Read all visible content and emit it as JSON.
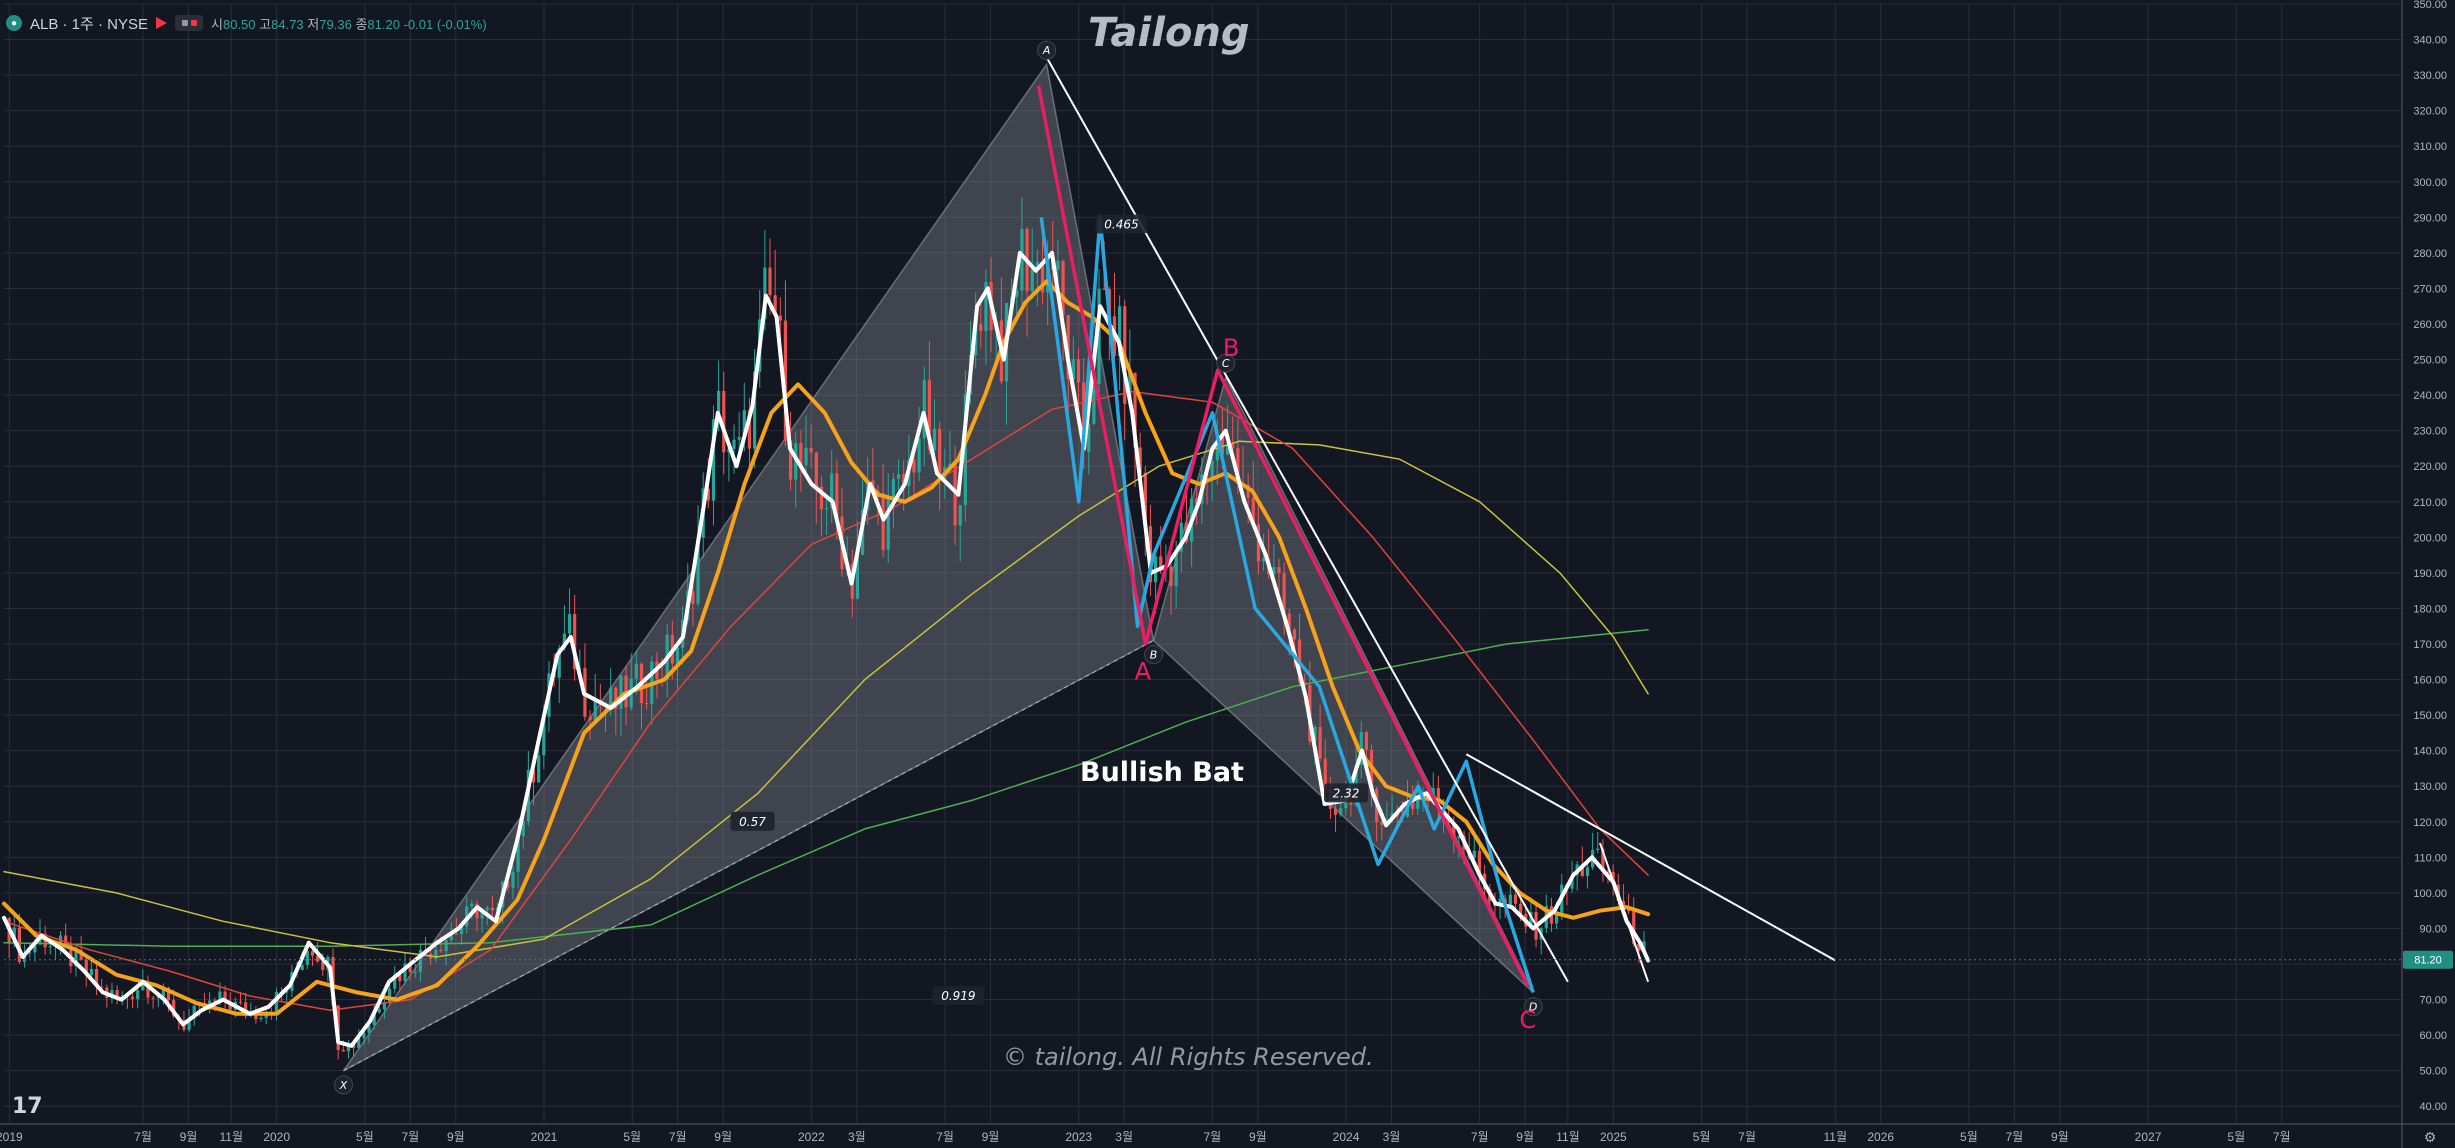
{
  "header": {
    "symbol": "ALB · 1주 · NYSE",
    "open_label": "시",
    "open_value": "80.50",
    "high_label": "고",
    "high_value": "84.73",
    "low_label": "저",
    "low_value": "79.36",
    "close_label": "종",
    "close_value": "81.20",
    "change": "-0.01 (-0.01%)"
  },
  "watermark": {
    "title": "Tailong",
    "copyright": "© tailong. All Rights Reserved."
  },
  "logo_text": "17",
  "colors": {
    "background": "#131722",
    "grid": "#2a2e39",
    "up": "#26a69a",
    "down": "#ef5350",
    "price_line": "#ffffff",
    "ma_fast": "#f7a21b",
    "ma_50": "#e0453b",
    "ma_100": "#c9c23a",
    "ma_200": "#4caf50",
    "harmonic": "#9598a1",
    "abc": "#e91e63",
    "swing": "#29a8e0",
    "trendline": "#ffffff",
    "last_price": "#1f8f84"
  },
  "chart_data": {
    "type": "line",
    "title": "",
    "xlabel": "",
    "ylabel": "",
    "ylim": [
      35,
      350
    ],
    "xlim": [
      2018.98,
      2027.95
    ],
    "y_ticks": [
      "40.00",
      "50.00",
      "60.00",
      "70.00",
      "80.00",
      "90.00",
      "100.00",
      "110.00",
      "120.00",
      "130.00",
      "140.00",
      "150.00",
      "160.00",
      "170.00",
      "180.00",
      "190.00",
      "200.00",
      "210.00",
      "220.00",
      "230.00",
      "240.00",
      "250.00",
      "260.00",
      "270.00",
      "280.00",
      "290.00",
      "300.00",
      "310.00",
      "320.00",
      "330.00",
      "340.00",
      "350.00"
    ],
    "x_ticks": [
      {
        "t": 2019.0,
        "label": "2019"
      },
      {
        "t": 2019.5,
        "label": "7월"
      },
      {
        "t": 2019.67,
        "label": "9월"
      },
      {
        "t": 2019.83,
        "label": "11월"
      },
      {
        "t": 2020.0,
        "label": "2020"
      },
      {
        "t": 2020.33,
        "label": "5월"
      },
      {
        "t": 2020.5,
        "label": "7월"
      },
      {
        "t": 2020.67,
        "label": "9월"
      },
      {
        "t": 2021.0,
        "label": "2021"
      },
      {
        "t": 2021.33,
        "label": "5월"
      },
      {
        "t": 2021.5,
        "label": "7월"
      },
      {
        "t": 2021.67,
        "label": "9월"
      },
      {
        "t": 2022.0,
        "label": "2022"
      },
      {
        "t": 2022.17,
        "label": "3월"
      },
      {
        "t": 2022.5,
        "label": "7월"
      },
      {
        "t": 2022.67,
        "label": "9월"
      },
      {
        "t": 2023.0,
        "label": "2023"
      },
      {
        "t": 2023.17,
        "label": "3월"
      },
      {
        "t": 2023.5,
        "label": "7월"
      },
      {
        "t": 2023.67,
        "label": "9월"
      },
      {
        "t": 2024.0,
        "label": "2024"
      },
      {
        "t": 2024.17,
        "label": "3월"
      },
      {
        "t": 2024.5,
        "label": "7월"
      },
      {
        "t": 2024.67,
        "label": "9월"
      },
      {
        "t": 2024.83,
        "label": "11월"
      },
      {
        "t": 2025.0,
        "label": "2025"
      },
      {
        "t": 2025.33,
        "label": "5월"
      },
      {
        "t": 2025.5,
        "label": "7월"
      },
      {
        "t": 2025.83,
        "label": "11월"
      },
      {
        "t": 2026.0,
        "label": "2026"
      },
      {
        "t": 2026.33,
        "label": "5월"
      },
      {
        "t": 2026.5,
        "label": "7월"
      },
      {
        "t": 2026.67,
        "label": "9월"
      },
      {
        "t": 2027.0,
        "label": "2027"
      },
      {
        "t": 2027.33,
        "label": "5월"
      },
      {
        "t": 2027.5,
        "label": "7월"
      }
    ],
    "last_price": {
      "value": 81.2,
      "label": "81.20"
    },
    "series": [
      {
        "key": "price",
        "points": [
          [
            2018.98,
            93
          ],
          [
            2019.05,
            82
          ],
          [
            2019.12,
            88
          ],
          [
            2019.2,
            84
          ],
          [
            2019.28,
            78
          ],
          [
            2019.35,
            72
          ],
          [
            2019.42,
            70
          ],
          [
            2019.5,
            75
          ],
          [
            2019.58,
            70
          ],
          [
            2019.65,
            63
          ],
          [
            2019.72,
            67
          ],
          [
            2019.8,
            70
          ],
          [
            2019.9,
            66
          ],
          [
            2019.97,
            68
          ],
          [
            2020.05,
            74
          ],
          [
            2020.12,
            86
          ],
          [
            2020.2,
            79
          ],
          [
            2020.23,
            58
          ],
          [
            2020.28,
            57
          ],
          [
            2020.35,
            64
          ],
          [
            2020.42,
            75
          ],
          [
            2020.5,
            80
          ],
          [
            2020.6,
            86
          ],
          [
            2020.68,
            90
          ],
          [
            2020.75,
            96
          ],
          [
            2020.82,
            92
          ],
          [
            2020.9,
            115
          ],
          [
            2020.98,
            143
          ],
          [
            2021.05,
            167
          ],
          [
            2021.1,
            172
          ],
          [
            2021.15,
            156
          ],
          [
            2021.25,
            152
          ],
          [
            2021.35,
            158
          ],
          [
            2021.45,
            165
          ],
          [
            2021.52,
            172
          ],
          [
            2021.6,
            210
          ],
          [
            2021.65,
            235
          ],
          [
            2021.72,
            220
          ],
          [
            2021.78,
            237
          ],
          [
            2021.83,
            268
          ],
          [
            2021.87,
            262
          ],
          [
            2021.92,
            225
          ],
          [
            2022.0,
            215
          ],
          [
            2022.08,
            210
          ],
          [
            2022.15,
            187
          ],
          [
            2022.22,
            215
          ],
          [
            2022.27,
            205
          ],
          [
            2022.35,
            215
          ],
          [
            2022.42,
            235
          ],
          [
            2022.47,
            218
          ],
          [
            2022.55,
            212
          ],
          [
            2022.62,
            265
          ],
          [
            2022.66,
            270
          ],
          [
            2022.72,
            250
          ],
          [
            2022.78,
            280
          ],
          [
            2022.84,
            275
          ],
          [
            2022.9,
            280
          ],
          [
            2022.96,
            250
          ],
          [
            2023.02,
            225
          ],
          [
            2023.08,
            265
          ],
          [
            2023.15,
            255
          ],
          [
            2023.2,
            235
          ],
          [
            2023.27,
            190
          ],
          [
            2023.33,
            192
          ],
          [
            2023.4,
            200
          ],
          [
            2023.45,
            210
          ],
          [
            2023.5,
            225
          ],
          [
            2023.55,
            230
          ],
          [
            2023.62,
            210
          ],
          [
            2023.7,
            195
          ],
          [
            2023.78,
            175
          ],
          [
            2023.85,
            155
          ],
          [
            2023.92,
            125
          ],
          [
            2024.0,
            126
          ],
          [
            2024.06,
            140
          ],
          [
            2024.1,
            128
          ],
          [
            2024.15,
            119
          ],
          [
            2024.22,
            125
          ],
          [
            2024.3,
            128
          ],
          [
            2024.35,
            124
          ],
          [
            2024.42,
            118
          ],
          [
            2024.5,
            105
          ],
          [
            2024.56,
            97
          ],
          [
            2024.62,
            96
          ],
          [
            2024.7,
            90
          ],
          [
            2024.78,
            95
          ],
          [
            2024.85,
            105
          ],
          [
            2024.92,
            110
          ],
          [
            2025.0,
            103
          ],
          [
            2025.05,
            92
          ],
          [
            2025.1,
            86
          ],
          [
            2025.13,
            81
          ]
        ]
      },
      {
        "key": "ma_fast",
        "points": [
          [
            2018.98,
            97
          ],
          [
            2019.1,
            88
          ],
          [
            2019.25,
            84
          ],
          [
            2019.4,
            77
          ],
          [
            2019.55,
            74
          ],
          [
            2019.7,
            69
          ],
          [
            2019.85,
            66
          ],
          [
            2020.0,
            66
          ],
          [
            2020.15,
            75
          ],
          [
            2020.3,
            72
          ],
          [
            2020.45,
            70
          ],
          [
            2020.6,
            74
          ],
          [
            2020.75,
            85
          ],
          [
            2020.9,
            98
          ],
          [
            2021.0,
            115
          ],
          [
            2021.15,
            145
          ],
          [
            2021.3,
            156
          ],
          [
            2021.45,
            160
          ],
          [
            2021.55,
            168
          ],
          [
            2021.65,
            190
          ],
          [
            2021.75,
            215
          ],
          [
            2021.85,
            235
          ],
          [
            2021.95,
            243
          ],
          [
            2022.05,
            235
          ],
          [
            2022.15,
            221
          ],
          [
            2022.25,
            212
          ],
          [
            2022.35,
            210
          ],
          [
            2022.45,
            214
          ],
          [
            2022.55,
            222
          ],
          [
            2022.65,
            240
          ],
          [
            2022.72,
            255
          ],
          [
            2022.8,
            266
          ],
          [
            2022.88,
            272
          ],
          [
            2022.96,
            266
          ],
          [
            2023.05,
            262
          ],
          [
            2023.15,
            255
          ],
          [
            2023.25,
            235
          ],
          [
            2023.35,
            218
          ],
          [
            2023.45,
            215
          ],
          [
            2023.55,
            218
          ],
          [
            2023.65,
            213
          ],
          [
            2023.75,
            200
          ],
          [
            2023.85,
            180
          ],
          [
            2023.95,
            158
          ],
          [
            2024.05,
            140
          ],
          [
            2024.15,
            130
          ],
          [
            2024.25,
            127
          ],
          [
            2024.35,
            126
          ],
          [
            2024.45,
            120
          ],
          [
            2024.55,
            108
          ],
          [
            2024.65,
            100
          ],
          [
            2024.75,
            95
          ],
          [
            2024.85,
            93
          ],
          [
            2024.95,
            95
          ],
          [
            2025.05,
            96
          ],
          [
            2025.13,
            94
          ]
        ]
      },
      {
        "key": "ma_50",
        "points": [
          [
            2018.98,
            92
          ],
          [
            2019.3,
            84
          ],
          [
            2019.6,
            78
          ],
          [
            2019.9,
            71
          ],
          [
            2020.2,
            67
          ],
          [
            2020.5,
            70
          ],
          [
            2020.8,
            84
          ],
          [
            2021.1,
            115
          ],
          [
            2021.4,
            148
          ],
          [
            2021.7,
            175
          ],
          [
            2022.0,
            198
          ],
          [
            2022.3,
            208
          ],
          [
            2022.6,
            222
          ],
          [
            2022.9,
            236
          ],
          [
            2023.2,
            241
          ],
          [
            2023.5,
            238
          ],
          [
            2023.8,
            225
          ],
          [
            2024.1,
            200
          ],
          [
            2024.4,
            172
          ],
          [
            2024.7,
            143
          ],
          [
            2024.95,
            118
          ],
          [
            2025.13,
            105
          ]
        ]
      },
      {
        "key": "ma_100",
        "points": [
          [
            2018.98,
            106
          ],
          [
            2019.4,
            100
          ],
          [
            2019.8,
            92
          ],
          [
            2020.2,
            86
          ],
          [
            2020.6,
            82
          ],
          [
            2021.0,
            87
          ],
          [
            2021.4,
            104
          ],
          [
            2021.8,
            128
          ],
          [
            2022.2,
            160
          ],
          [
            2022.6,
            184
          ],
          [
            2023.0,
            206
          ],
          [
            2023.3,
            220
          ],
          [
            2023.6,
            227
          ],
          [
            2023.9,
            226
          ],
          [
            2024.2,
            222
          ],
          [
            2024.5,
            210
          ],
          [
            2024.8,
            190
          ],
          [
            2025.0,
            172
          ],
          [
            2025.13,
            156
          ]
        ]
      },
      {
        "key": "ma_200",
        "points": [
          [
            2018.98,
            86
          ],
          [
            2019.6,
            85
          ],
          [
            2020.2,
            85
          ],
          [
            2020.8,
            86
          ],
          [
            2021.4,
            91
          ],
          [
            2021.8,
            105
          ],
          [
            2022.2,
            118
          ],
          [
            2022.6,
            126
          ],
          [
            2023.0,
            136
          ],
          [
            2023.4,
            148
          ],
          [
            2023.8,
            158
          ],
          [
            2024.2,
            164
          ],
          [
            2024.6,
            170
          ],
          [
            2025.0,
            173
          ],
          [
            2025.13,
            174
          ]
        ]
      }
    ],
    "harmonic": {
      "X": [
        2020.25,
        50
      ],
      "A": [
        2022.88,
        333
      ],
      "B": [
        2023.28,
        171
      ],
      "C": [
        2023.55,
        245
      ],
      "D": [
        2024.7,
        72
      ]
    },
    "abc_path": [
      [
        2022.85,
        327
      ],
      [
        2023.25,
        170
      ],
      [
        2023.52,
        247
      ],
      [
        2024.68,
        74
      ]
    ],
    "swing_path": [
      [
        2022.86,
        290
      ],
      [
        2023.0,
        210
      ],
      [
        2023.08,
        290
      ],
      [
        2023.22,
        175
      ],
      [
        2023.28,
        195
      ],
      [
        2023.5,
        235
      ],
      [
        2023.66,
        180
      ],
      [
        2023.9,
        158
      ],
      [
        2024.12,
        108
      ],
      [
        2024.27,
        130
      ],
      [
        2024.33,
        118
      ],
      [
        2024.45,
        137
      ],
      [
        2024.58,
        100
      ],
      [
        2024.7,
        72
      ]
    ],
    "trendlines": [
      [
        [
          2022.88,
          335
        ],
        [
          2024.83,
          75
        ]
      ],
      [
        [
          2024.45,
          139
        ],
        [
          2025.83,
          81
        ]
      ],
      [
        [
          2024.95,
          114
        ],
        [
          2025.13,
          75
        ]
      ]
    ],
    "annotations": [
      {
        "text": "A",
        "at": [
          2022.88,
          337
        ],
        "style": "point"
      },
      {
        "text": "B",
        "at": [
          2023.28,
          167
        ],
        "style": "point"
      },
      {
        "text": "C",
        "at": [
          2023.55,
          249
        ],
        "style": "point"
      },
      {
        "text": "D",
        "at": [
          2024.7,
          68
        ],
        "style": "point"
      },
      {
        "text": "X",
        "at": [
          2020.25,
          46
        ],
        "style": "point"
      },
      {
        "text": "0.465",
        "at": [
          2023.16,
          288
        ],
        "style": "ratio"
      },
      {
        "text": "0.57",
        "at": [
          2021.78,
          120
        ],
        "style": "ratio"
      },
      {
        "text": "0.919",
        "at": [
          2022.55,
          71
        ],
        "style": "ratio"
      },
      {
        "text": "2.32",
        "at": [
          2024.0,
          128
        ],
        "style": "ratio"
      },
      {
        "text": "A",
        "at": [
          2023.24,
          160
        ],
        "style": "abc"
      },
      {
        "text": "B",
        "at": [
          2023.57,
          251
        ],
        "style": "abc"
      },
      {
        "text": "C",
        "at": [
          2024.68,
          62
        ],
        "style": "abc"
      }
    ],
    "pattern_label": "Bullish Bat"
  }
}
